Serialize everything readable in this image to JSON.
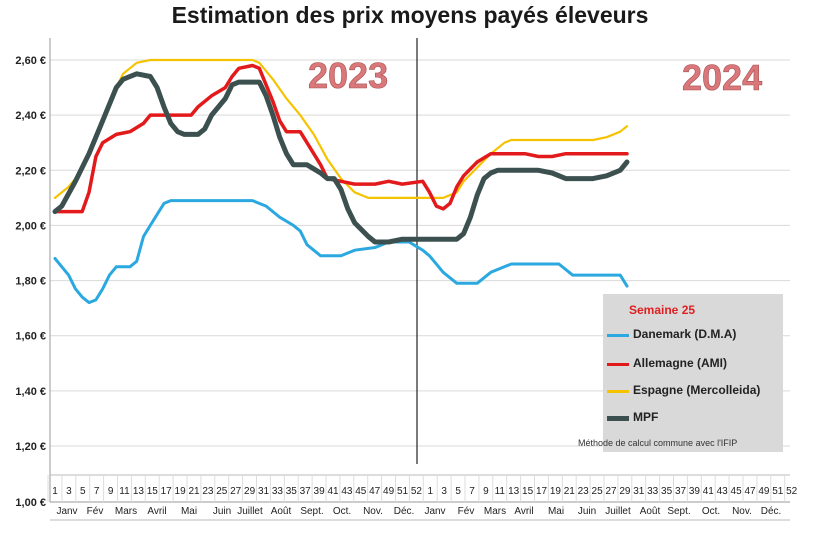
{
  "chart_data": {
    "type": "line",
    "title": "Estimation des prix moyens payés éleveurs",
    "year_labels": [
      "2023",
      "2024"
    ],
    "ylim": [
      1.0,
      2.65
    ],
    "yticks": [
      "1,00 €",
      "1,20 €",
      "1,40 €",
      "1,60 €",
      "1,80 €",
      "2,00 €",
      "2,20 €",
      "2,40 €",
      "2,60 €"
    ],
    "ytick_values": [
      1.0,
      1.2,
      1.4,
      1.6,
      1.8,
      2.0,
      2.2,
      2.4,
      2.6
    ],
    "grid": true,
    "x_tick_labels": [
      "1",
      "3",
      "5",
      "7",
      "9",
      "11",
      "13",
      "15",
      "17",
      "19",
      "21",
      "23",
      "25",
      "27",
      "29",
      "31",
      "33",
      "35",
      "37",
      "39",
      "41",
      "43",
      "45",
      "47",
      "49",
      "51",
      "52",
      "1",
      "3",
      "5",
      "7",
      "9",
      "11",
      "13",
      "15",
      "17",
      "19",
      "21",
      "23",
      "25",
      "27",
      "29",
      "31",
      "33",
      "35",
      "37",
      "39",
      "41",
      "43",
      "45",
      "47",
      "49",
      "51",
      "52"
    ],
    "months": [
      "Janv",
      "Fév",
      "Mars",
      "Avril",
      "Mai",
      "Juin",
      "Juillet",
      "Août",
      "Sept.",
      "Oct.",
      "Nov.",
      "Déc.",
      "Janv",
      "Fév",
      "Mars",
      "Avril",
      "Mai",
      "Juin",
      "Juillet",
      "Août",
      "Sept.",
      "Oct.",
      "Nov.",
      "Déc."
    ],
    "series": [
      {
        "name": "Danemark (D.M.A)",
        "color": "#2aa8df",
        "points": [
          [
            1,
            1.88
          ],
          [
            2,
            1.85
          ],
          [
            3,
            1.82
          ],
          [
            4,
            1.77
          ],
          [
            5,
            1.74
          ],
          [
            6,
            1.72
          ],
          [
            7,
            1.73
          ],
          [
            8,
            1.77
          ],
          [
            9,
            1.82
          ],
          [
            10,
            1.85
          ],
          [
            12,
            1.85
          ],
          [
            13,
            1.87
          ],
          [
            14,
            1.96
          ],
          [
            15,
            2.0
          ],
          [
            16,
            2.04
          ],
          [
            17,
            2.08
          ],
          [
            18,
            2.09
          ],
          [
            22,
            2.09
          ],
          [
            26,
            2.09
          ],
          [
            30,
            2.09
          ],
          [
            32,
            2.07
          ],
          [
            34,
            2.03
          ],
          [
            36,
            2.0
          ],
          [
            37,
            1.98
          ],
          [
            38,
            1.93
          ],
          [
            40,
            1.89
          ],
          [
            43,
            1.89
          ],
          [
            45,
            1.91
          ],
          [
            48,
            1.92
          ],
          [
            50,
            1.94
          ],
          [
            53,
            1.94
          ],
          [
            55,
            1.91
          ],
          [
            56,
            1.89
          ],
          [
            58,
            1.83
          ],
          [
            60,
            1.79
          ],
          [
            63,
            1.79
          ],
          [
            65,
            1.83
          ],
          [
            66,
            1.84
          ],
          [
            68,
            1.86
          ],
          [
            75,
            1.86
          ],
          [
            77,
            1.82
          ],
          [
            80,
            1.82
          ],
          [
            82,
            1.82
          ],
          [
            84,
            1.82
          ],
          [
            85,
            1.78
          ]
        ]
      },
      {
        "name": "Allemagne (AMI)",
        "color": "#e31a1c",
        "points": [
          [
            1,
            2.05
          ],
          [
            3,
            2.05
          ],
          [
            5,
            2.05
          ],
          [
            6,
            2.12
          ],
          [
            7,
            2.25
          ],
          [
            8,
            2.3
          ],
          [
            10,
            2.33
          ],
          [
            12,
            2.34
          ],
          [
            14,
            2.37
          ],
          [
            15,
            2.4
          ],
          [
            18,
            2.4
          ],
          [
            21,
            2.4
          ],
          [
            22,
            2.43
          ],
          [
            24,
            2.47
          ],
          [
            26,
            2.5
          ],
          [
            27,
            2.54
          ],
          [
            28,
            2.57
          ],
          [
            30,
            2.58
          ],
          [
            31,
            2.57
          ],
          [
            33,
            2.45
          ],
          [
            34,
            2.38
          ],
          [
            35,
            2.34
          ],
          [
            37,
            2.34
          ],
          [
            38,
            2.3
          ],
          [
            40,
            2.22
          ],
          [
            41,
            2.17
          ],
          [
            43,
            2.16
          ],
          [
            45,
            2.15
          ],
          [
            48,
            2.15
          ],
          [
            50,
            2.16
          ],
          [
            52,
            2.15
          ],
          [
            55,
            2.16
          ],
          [
            56,
            2.12
          ],
          [
            57,
            2.07
          ],
          [
            58,
            2.06
          ],
          [
            59,
            2.08
          ],
          [
            60,
            2.14
          ],
          [
            61,
            2.18
          ],
          [
            63,
            2.23
          ],
          [
            65,
            2.26
          ],
          [
            70,
            2.26
          ],
          [
            72,
            2.25
          ],
          [
            74,
            2.25
          ],
          [
            76,
            2.26
          ],
          [
            80,
            2.26
          ],
          [
            85,
            2.26
          ]
        ]
      },
      {
        "name": "Espagne (Mercolleida)",
        "color": "#f5c300",
        "points": [
          [
            1,
            2.1
          ],
          [
            3,
            2.14
          ],
          [
            5,
            2.2
          ],
          [
            7,
            2.32
          ],
          [
            9,
            2.45
          ],
          [
            11,
            2.55
          ],
          [
            13,
            2.59
          ],
          [
            15,
            2.6
          ],
          [
            20,
            2.6
          ],
          [
            25,
            2.6
          ],
          [
            30,
            2.6
          ],
          [
            31,
            2.59
          ],
          [
            33,
            2.53
          ],
          [
            35,
            2.46
          ],
          [
            37,
            2.4
          ],
          [
            39,
            2.33
          ],
          [
            41,
            2.24
          ],
          [
            43,
            2.17
          ],
          [
            45,
            2.12
          ],
          [
            47,
            2.1
          ],
          [
            50,
            2.1
          ],
          [
            55,
            2.1
          ],
          [
            58,
            2.1
          ],
          [
            60,
            2.12
          ],
          [
            61,
            2.16
          ],
          [
            63,
            2.21
          ],
          [
            65,
            2.26
          ],
          [
            67,
            2.3
          ],
          [
            68,
            2.31
          ],
          [
            75,
            2.31
          ],
          [
            80,
            2.31
          ],
          [
            82,
            2.32
          ],
          [
            84,
            2.34
          ],
          [
            85,
            2.36
          ]
        ]
      },
      {
        "name": "MPF",
        "color": "#3d5050",
        "points": [
          [
            1,
            2.05
          ],
          [
            2,
            2.07
          ],
          [
            4,
            2.16
          ],
          [
            6,
            2.26
          ],
          [
            8,
            2.38
          ],
          [
            10,
            2.5
          ],
          [
            11,
            2.53
          ],
          [
            13,
            2.55
          ],
          [
            15,
            2.54
          ],
          [
            16,
            2.5
          ],
          [
            17,
            2.43
          ],
          [
            18,
            2.37
          ],
          [
            19,
            2.34
          ],
          [
            20,
            2.33
          ],
          [
            22,
            2.33
          ],
          [
            23,
            2.35
          ],
          [
            24,
            2.4
          ],
          [
            26,
            2.46
          ],
          [
            27,
            2.51
          ],
          [
            28,
            2.52
          ],
          [
            31,
            2.52
          ],
          [
            32,
            2.47
          ],
          [
            33,
            2.4
          ],
          [
            34,
            2.32
          ],
          [
            35,
            2.26
          ],
          [
            36,
            2.22
          ],
          [
            38,
            2.22
          ],
          [
            40,
            2.19
          ],
          [
            41,
            2.17
          ],
          [
            42,
            2.17
          ],
          [
            43,
            2.13
          ],
          [
            44,
            2.06
          ],
          [
            45,
            2.01
          ],
          [
            47,
            1.96
          ],
          [
            48,
            1.94
          ],
          [
            50,
            1.94
          ],
          [
            52,
            1.95
          ],
          [
            55,
            1.95
          ],
          [
            58,
            1.95
          ],
          [
            60,
            1.95
          ],
          [
            61,
            1.97
          ],
          [
            62,
            2.03
          ],
          [
            63,
            2.11
          ],
          [
            64,
            2.17
          ],
          [
            65,
            2.19
          ],
          [
            66,
            2.2
          ],
          [
            70,
            2.2
          ],
          [
            72,
            2.2
          ],
          [
            74,
            2.19
          ],
          [
            76,
            2.17
          ],
          [
            78,
            2.17
          ],
          [
            80,
            2.17
          ],
          [
            82,
            2.18
          ],
          [
            84,
            2.2
          ],
          [
            85,
            2.23
          ]
        ]
      }
    ],
    "legend": {
      "title": "Semaine 25",
      "placement": "bottom-right",
      "note": "Méthode de calcul commune avec l'IFIP"
    }
  }
}
